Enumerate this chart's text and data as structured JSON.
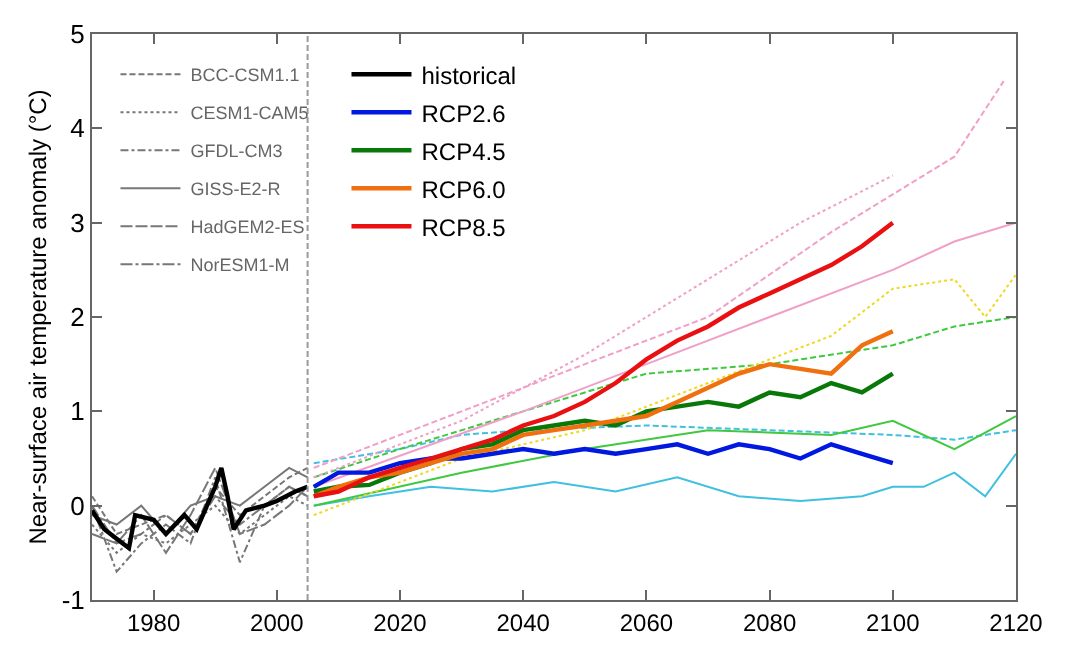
{
  "chart_data": {
    "type": "line",
    "ylabel": "Near-surface air temperature anomaly (°C)",
    "xlim": [
      1970,
      2120
    ],
    "xticks": [
      1980,
      2000,
      2020,
      2040,
      2060,
      2080,
      2100,
      2120
    ],
    "ylim": [
      -1,
      5
    ],
    "yticks": [
      -1,
      0,
      1,
      2,
      3,
      4,
      5
    ],
    "grid": false,
    "legend": "top left",
    "ref_lines": [
      {
        "axis": "x",
        "value": 2005,
        "color": "#999999",
        "line_style": "dashed"
      }
    ],
    "series": [
      {
        "name": "BCC-CSM1.1",
        "color": "#777777",
        "line_style": "dashed",
        "x": [
          1970,
          1974,
          1978,
          1982,
          1986,
          1990,
          1994,
          1998,
          2002,
          2005
        ],
        "values": [
          0.1,
          -0.3,
          -0.2,
          -0.1,
          -0.3,
          0.2,
          -0.1,
          0.1,
          0.3,
          0.4
        ]
      },
      {
        "name": "CESM1-CAM5",
        "color": "#777777",
        "line_style": "dotted",
        "x": [
          1970,
          1974,
          1978,
          1982,
          1986,
          1990,
          1994,
          1998,
          2002,
          2005
        ],
        "values": [
          -0.2,
          -0.5,
          -0.3,
          -0.4,
          -0.2,
          0.0,
          -0.3,
          -0.1,
          0.1,
          0.0
        ]
      },
      {
        "name": "GFDL-CM3",
        "color": "#777777",
        "line_style": "dashdot",
        "x": [
          1970,
          1974,
          1978,
          1982,
          1986,
          1990,
          1994,
          1998,
          2002,
          2005
        ],
        "values": [
          0.0,
          -0.7,
          -0.4,
          -0.2,
          -0.4,
          0.3,
          -0.6,
          0.0,
          0.2,
          0.1
        ]
      },
      {
        "name": "GISS-E2-R",
        "color": "#777777",
        "line_style": "solid",
        "x": [
          1970,
          1974,
          1978,
          1982,
          1986,
          1990,
          1994,
          1998,
          2002,
          2005
        ],
        "values": [
          -0.1,
          -0.2,
          0.0,
          -0.3,
          0.0,
          0.1,
          0.0,
          0.2,
          0.4,
          0.3
        ]
      },
      {
        "name": "HadGEM2-ES",
        "color": "#777777",
        "line_style": "longdash",
        "x": [
          1970,
          1974,
          1978,
          1982,
          1986,
          1990,
          1994,
          1998,
          2002,
          2005
        ],
        "values": [
          -0.3,
          -0.4,
          -0.1,
          -0.5,
          -0.1,
          0.4,
          -0.3,
          -0.2,
          0.0,
          0.2
        ]
      },
      {
        "name": "NorESM1-M",
        "color": "#777777",
        "line_style": "longdashdot",
        "x": [
          1970,
          1974,
          1978,
          1982,
          1986,
          1990,
          1994,
          1998,
          2002,
          2005
        ],
        "values": [
          0.0,
          -0.4,
          -0.3,
          -0.1,
          -0.3,
          0.1,
          -0.2,
          0.0,
          0.2,
          0.1
        ]
      },
      {
        "color": "#40c0e0",
        "line_style": "solid",
        "x": [
          2006,
          2015,
          2025,
          2035,
          2045,
          2055,
          2065,
          2075,
          2085,
          2095,
          2100,
          2105,
          2110,
          2115,
          2120
        ],
        "values": [
          0,
          0.1,
          0.2,
          0.15,
          0.25,
          0.15,
          0.3,
          0.1,
          0.05,
          0.1,
          0.2,
          0.2,
          0.35,
          0.1,
          0.55
        ]
      },
      {
        "color": "#40c0e0",
        "line_style": "dashed",
        "x": [
          2006,
          2020,
          2030,
          2040,
          2060,
          2080,
          2100,
          2110,
          2120
        ],
        "values": [
          0.45,
          0.6,
          0.75,
          0.8,
          0.85,
          0.8,
          0.75,
          0.7,
          0.8
        ]
      },
      {
        "color": "#40c840",
        "line_style": "dashed",
        "x": [
          2006,
          2020,
          2040,
          2060,
          2080,
          2100,
          2110,
          2120
        ],
        "values": [
          0.3,
          0.6,
          1.0,
          1.4,
          1.5,
          1.7,
          1.9,
          2.0
        ]
      },
      {
        "color": "#40c840",
        "line_style": "solid",
        "x": [
          2006,
          2030,
          2050,
          2070,
          2090,
          2100,
          2110,
          2120
        ],
        "values": [
          0,
          0.35,
          0.6,
          0.8,
          0.75,
          0.9,
          0.6,
          0.95
        ]
      },
      {
        "color": "#f0d820",
        "line_style": "dotted",
        "x": [
          2006,
          2030,
          2050,
          2070,
          2090,
          2100,
          2110,
          2115,
          2120
        ],
        "values": [
          -0.1,
          0.5,
          0.8,
          1.3,
          1.8,
          2.3,
          2.4,
          2.0,
          2.45
        ]
      },
      {
        "color": "#f0a0c8",
        "line_style": "dotted",
        "x": [
          2006,
          2030,
          2050,
          2070,
          2085,
          2100
        ],
        "values": [
          0.3,
          0.9,
          1.6,
          2.4,
          3.0,
          3.5
        ]
      },
      {
        "color": "#f0a0c8",
        "line_style": "dashed",
        "x": [
          2006,
          2030,
          2050,
          2070,
          2090,
          2100,
          2110,
          2118
        ],
        "values": [
          0.4,
          1.0,
          1.5,
          2.0,
          2.9,
          3.3,
          3.7,
          4.5
        ]
      },
      {
        "color": "#f0a0c8",
        "line_style": "solid",
        "x": [
          2006,
          2040,
          2060,
          2080,
          2100,
          2110,
          2120
        ],
        "values": [
          0.2,
          1.0,
          1.5,
          2.0,
          2.5,
          2.8,
          3.0
        ]
      },
      {
        "name": "historical",
        "color": "#000000",
        "x": [
          1970,
          1972,
          1975,
          1976,
          1977,
          1980,
          1982,
          1985,
          1987,
          1990,
          1991,
          1992,
          1993,
          1995,
          1998,
          2000,
          2003,
          2005
        ],
        "values": [
          -0.05,
          -0.25,
          -0.4,
          -0.45,
          -0.1,
          -0.15,
          -0.3,
          -0.1,
          -0.25,
          0.2,
          0.4,
          0.1,
          -0.25,
          -0.05,
          0.0,
          0.05,
          0.15,
          0.2
        ]
      },
      {
        "name": "RCP2.6",
        "color": "#0018e0",
        "x": [
          2006,
          2010,
          2015,
          2020,
          2025,
          2030,
          2035,
          2040,
          2045,
          2050,
          2055,
          2060,
          2065,
          2070,
          2075,
          2080,
          2085,
          2090,
          2095,
          2100
        ],
        "values": [
          0.2,
          0.35,
          0.35,
          0.45,
          0.5,
          0.5,
          0.55,
          0.6,
          0.55,
          0.6,
          0.55,
          0.6,
          0.65,
          0.55,
          0.65,
          0.6,
          0.5,
          0.65,
          0.55,
          0.45
        ]
      },
      {
        "name": "RCP4.5",
        "color": "#087808",
        "x": [
          2006,
          2010,
          2015,
          2020,
          2025,
          2030,
          2035,
          2040,
          2045,
          2050,
          2055,
          2060,
          2065,
          2070,
          2075,
          2080,
          2085,
          2090,
          2095,
          2100
        ],
        "values": [
          0.15,
          0.2,
          0.22,
          0.35,
          0.45,
          0.6,
          0.65,
          0.8,
          0.85,
          0.9,
          0.85,
          1.0,
          1.05,
          1.1,
          1.05,
          1.2,
          1.15,
          1.3,
          1.2,
          1.4
        ]
      },
      {
        "name": "RCP6.0",
        "color": "#f07010",
        "x": [
          2006,
          2010,
          2015,
          2020,
          2025,
          2030,
          2035,
          2040,
          2045,
          2050,
          2055,
          2060,
          2065,
          2070,
          2075,
          2080,
          2085,
          2090,
          2095,
          2100
        ],
        "values": [
          0.1,
          0.2,
          0.3,
          0.35,
          0.45,
          0.55,
          0.6,
          0.75,
          0.8,
          0.85,
          0.9,
          0.95,
          1.1,
          1.25,
          1.4,
          1.5,
          1.45,
          1.4,
          1.7,
          1.85
        ]
      },
      {
        "name": "RCP8.5",
        "color": "#e81010",
        "x": [
          2006,
          2010,
          2015,
          2020,
          2025,
          2030,
          2035,
          2040,
          2045,
          2050,
          2055,
          2060,
          2065,
          2070,
          2075,
          2080,
          2085,
          2090,
          2095,
          2100
        ],
        "values": [
          0.1,
          0.15,
          0.3,
          0.4,
          0.5,
          0.6,
          0.7,
          0.85,
          0.95,
          1.1,
          1.3,
          1.55,
          1.75,
          1.9,
          2.1,
          2.25,
          2.4,
          2.55,
          2.75,
          3.0
        ]
      }
    ]
  }
}
